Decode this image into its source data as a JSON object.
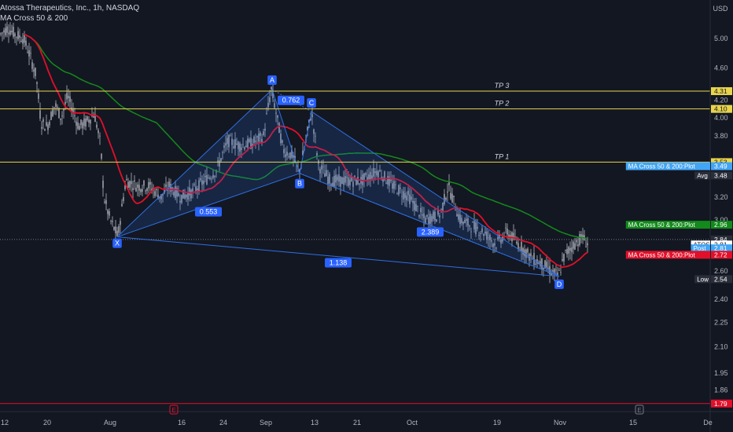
{
  "header": {
    "title": "Atossa Therapeutics, Inc., 1h, NASDAQ",
    "indicator": "MA Cross 50 & 200"
  },
  "colors": {
    "background": "#131722",
    "candle": "#b2b5be",
    "ma50": "#e0102a",
    "ma200": "#138a1b",
    "tp_line": "#e8d44d",
    "harmonic": "#2f6fe0",
    "axis_text": "#b2b5be",
    "low_line": "#e0102a"
  },
  "chart_data": {
    "type": "candlestick",
    "currency": "USD",
    "scale": "log",
    "ylim": [
      1.75,
      5.4
    ],
    "y_ticks": [
      "5.00",
      "4.60",
      "4.20",
      "4.00",
      "3.80",
      "3.40",
      "3.20",
      "3.00",
      "2.60",
      "2.40",
      "2.25",
      "2.10",
      "1.95",
      "1.86"
    ],
    "x_ticks": [
      "12",
      "20",
      "Aug",
      "16",
      "24",
      "Sep",
      "13",
      "21",
      "Oct",
      "19",
      "Nov",
      "15",
      "De"
    ],
    "tp_levels": [
      {
        "label": "TP 3",
        "price": "4.31",
        "value": 4.31
      },
      {
        "label": "TP 2",
        "price": "4.10",
        "value": 4.1
      },
      {
        "label": "TP 1",
        "price": "3.53",
        "value": 3.53
      }
    ],
    "pattern_points": [
      {
        "label": "X",
        "price": 2.86
      },
      {
        "label": "A",
        "price": 4.33
      },
      {
        "label": "B",
        "price": 3.42
      },
      {
        "label": "C",
        "price": 4.07
      },
      {
        "label": "D",
        "price": 2.56
      }
    ],
    "ratios": [
      {
        "label": "0.762",
        "between": "A-C"
      },
      {
        "label": "0.553",
        "between": "X-B"
      },
      {
        "label": "2.389",
        "between": "B-D"
      },
      {
        "label": "1.138",
        "between": "X-D"
      }
    ],
    "price_tags": [
      {
        "text": "MA Cross 50 & 200:Plot",
        "value": "3.49",
        "price": 3.49,
        "color": "#42a5f5"
      },
      {
        "text": "Avg",
        "value": "3.48",
        "price": 3.4,
        "color": "#2a2e39"
      },
      {
        "text": "MA Cross 50 & 200:Plot",
        "value": "2.96",
        "price": 2.96,
        "color": "#138a1b"
      },
      {
        "text": "",
        "value": "2.84",
        "price": 2.84,
        "color": "#2a2e39"
      },
      {
        "text": "ATOS",
        "value": "2.81",
        "price": 2.8,
        "color": "#ffffff"
      },
      {
        "text": "Post",
        "value": "2.81",
        "price": 2.77,
        "color": "#42a5f5"
      },
      {
        "text": "MA Cross 50 & 200:Plot",
        "value": "2.72",
        "price": 2.72,
        "color": "#e0102a"
      },
      {
        "text": "Low",
        "value": "2.54",
        "price": 2.54,
        "color": "#2a2e39"
      },
      {
        "text": "",
        "value": "1.79",
        "price": 1.79,
        "color": "#e0102a"
      }
    ],
    "last_price": 2.84,
    "low_price": 1.79,
    "event_markers": [
      "E",
      "E"
    ]
  }
}
